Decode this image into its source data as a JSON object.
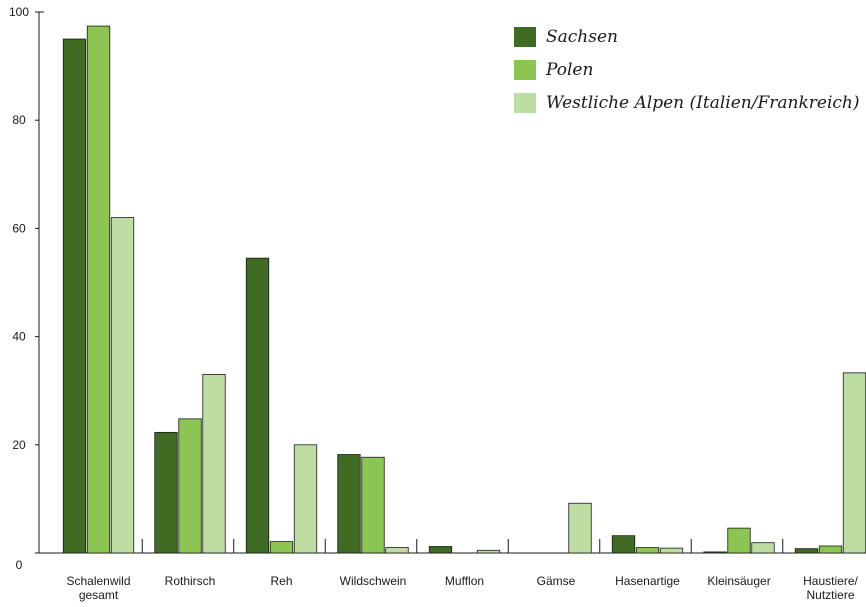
{
  "chart_data": {
    "type": "bar",
    "title": "",
    "xlabel": "",
    "ylabel": "",
    "ylim": [
      0,
      100
    ],
    "yticks": [
      0,
      20,
      40,
      60,
      80,
      100
    ],
    "grid": false,
    "legend_position": "top-right",
    "categories": [
      [
        "Schalenwild",
        "gesamt"
      ],
      [
        "Rothirsch"
      ],
      [
        "Reh"
      ],
      [
        "Wildschwein"
      ],
      [
        "Mufflon"
      ],
      [
        "Gämse"
      ],
      [
        "Hasenartige"
      ],
      [
        "Kleinsäuger"
      ],
      [
        "Haustiere/",
        "Nutztiere"
      ]
    ],
    "series": [
      {
        "name": "Sachsen",
        "color": "#3f6b22",
        "values": [
          95.0,
          22.3,
          54.5,
          18.2,
          1.2,
          0,
          3.2,
          0.2,
          0.8
        ]
      },
      {
        "name": "Polen",
        "color": "#8cc552",
        "values": [
          97.4,
          24.8,
          2.1,
          17.7,
          0,
          0,
          1.0,
          4.6,
          1.3
        ]
      },
      {
        "name": "Westliche Alpen (Italien/Frankreich)",
        "color": "#bedda2",
        "values": [
          62.0,
          33.0,
          20.0,
          1.0,
          0.5,
          9.2,
          0.9,
          1.9,
          33.3
        ]
      }
    ]
  }
}
